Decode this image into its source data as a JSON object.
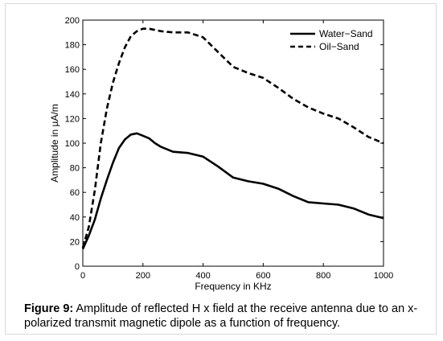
{
  "caption": {
    "label": "Figure 9:",
    "text": " Amplitude of reflected H x field at the receive antenna due to an x-polarized transmit magnetic dipole as a function of frequency."
  },
  "chart_data": {
    "type": "line",
    "title": "",
    "xlabel": "Frequency in KHz",
    "ylabel": "Amplitude in µA/m",
    "xlim": [
      0,
      1000
    ],
    "ylim": [
      0,
      200
    ],
    "xticks": [
      0,
      200,
      400,
      600,
      800,
      1000
    ],
    "yticks": [
      0,
      20,
      40,
      60,
      80,
      100,
      120,
      140,
      160,
      180,
      200
    ],
    "grid": false,
    "legend_position": "top-right",
    "series": [
      {
        "name": "Water−Sand",
        "style": "solid",
        "color": "#000000",
        "x": [
          0,
          20,
          40,
          60,
          80,
          100,
          120,
          140,
          160,
          180,
          200,
          220,
          240,
          260,
          300,
          350,
          400,
          450,
          500,
          550,
          600,
          650,
          700,
          750,
          800,
          850,
          900,
          950,
          1000
        ],
        "y": [
          14,
          25,
          38,
          55,
          70,
          84,
          96,
          103,
          107,
          108,
          106,
          104,
          100,
          97,
          93,
          92,
          89,
          81,
          72,
          69,
          67,
          63,
          57,
          52,
          51,
          50,
          47,
          42,
          39
        ]
      },
      {
        "name": "Oil−Sand",
        "style": "dashed",
        "color": "#000000",
        "x": [
          0,
          20,
          40,
          60,
          80,
          100,
          120,
          140,
          160,
          180,
          200,
          220,
          240,
          260,
          300,
          350,
          400,
          450,
          500,
          550,
          600,
          650,
          700,
          750,
          800,
          850,
          900,
          950,
          1000
        ],
        "y": [
          15,
          32,
          62,
          100,
          128,
          149,
          165,
          178,
          187,
          191,
          193,
          193,
          192,
          191,
          190,
          190,
          186,
          174,
          162,
          157,
          153,
          145,
          136,
          129,
          124,
          120,
          113,
          105,
          100
        ]
      }
    ]
  }
}
